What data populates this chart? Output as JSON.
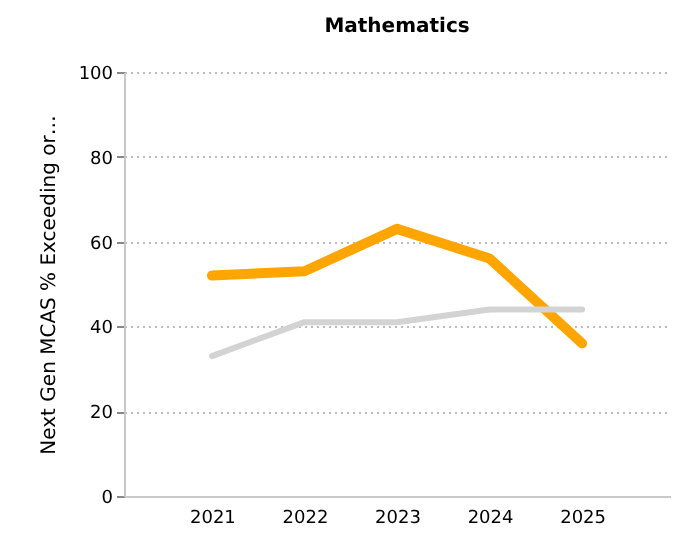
{
  "chart_data": {
    "type": "line",
    "title": "Mathematics",
    "ylabel": "Next Gen MCAS % Exceeding or…",
    "categories": [
      "2021",
      "2022",
      "2023",
      "2024",
      "2025"
    ],
    "series": [
      {
        "color": "#ffa500",
        "values": [
          52,
          53,
          63,
          56,
          36
        ]
      },
      {
        "color": "#d3d3d3",
        "values": [
          33,
          41,
          41,
          44,
          44
        ]
      }
    ],
    "ylim": [
      0,
      100
    ],
    "yticks": [
      0,
      20,
      40,
      60,
      80,
      100
    ],
    "grid": "y",
    "legend": false,
    "marker": "none",
    "line_style": "solid"
  }
}
